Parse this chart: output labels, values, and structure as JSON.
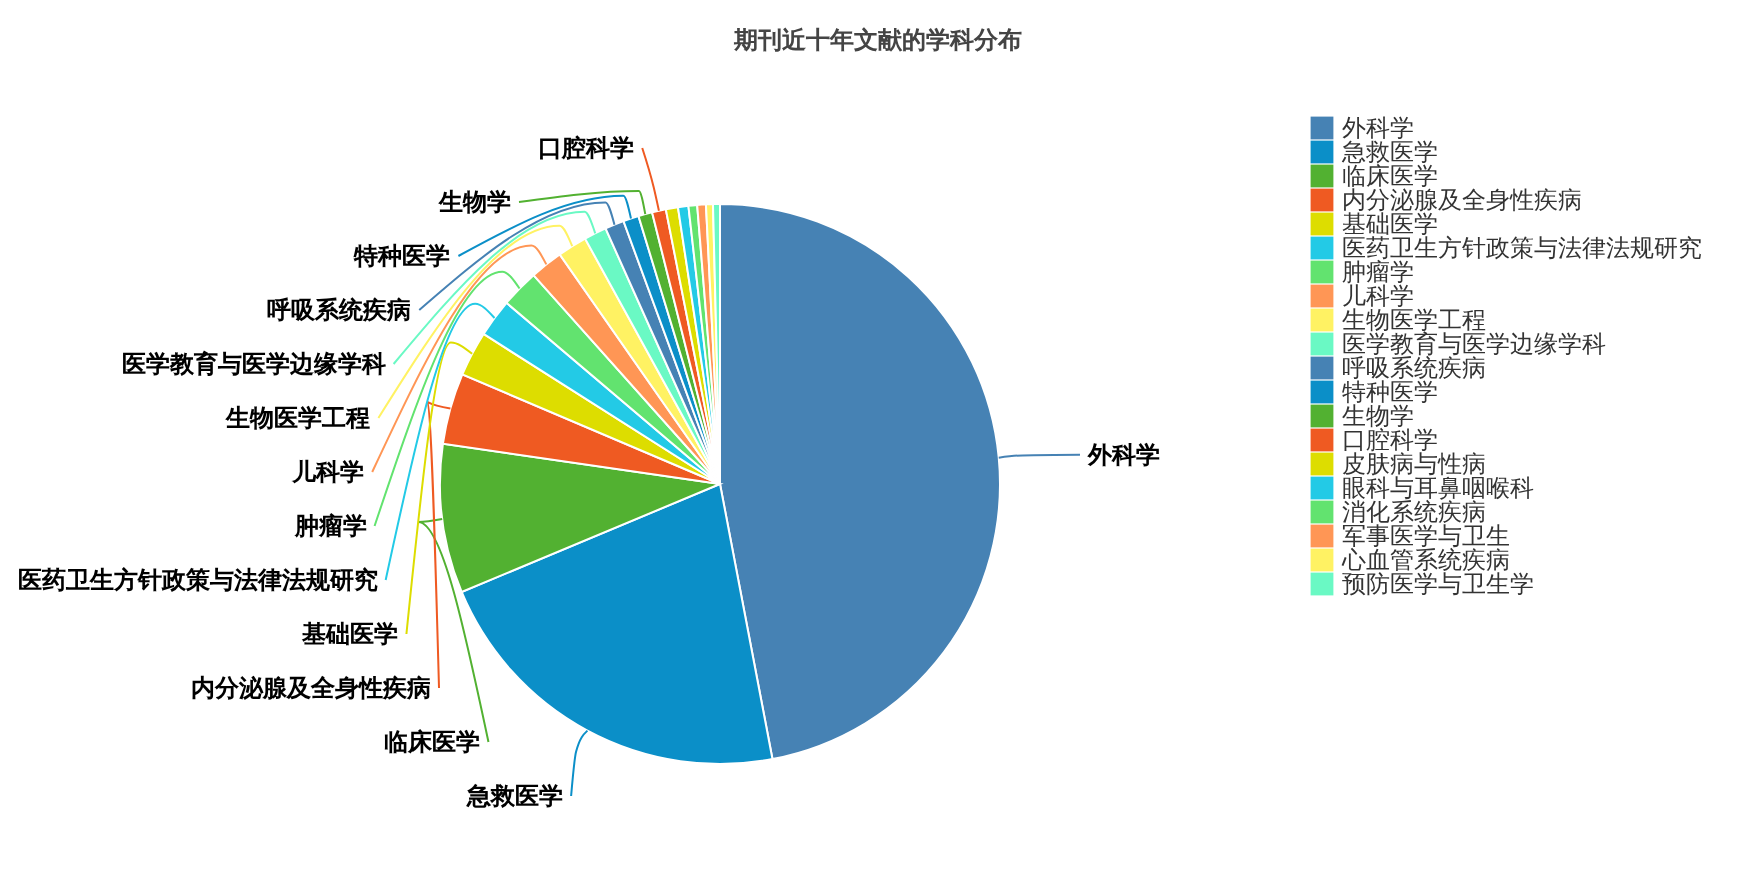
{
  "chart_data": {
    "type": "pie",
    "title": "期刊近十年文献的学科分布",
    "categories": [
      "外科学",
      "急救医学",
      "临床医学",
      "内分泌腺及全身性疾病",
      "基础医学",
      "医药卫生方针政策与法律法规研究",
      "肿瘤学",
      "儿科学",
      "生物医学工程",
      "医学教育与医学边缘学科",
      "呼吸系统疾病",
      "特种医学",
      "生物学",
      "口腔科学",
      "皮肤病与性病",
      "眼科与耳鼻咽喉科",
      "消化系统疾病",
      "军事医学与卫生",
      "心血管系统疾病",
      "预防医学与卫生学"
    ],
    "values": [
      47,
      21.7,
      8.6,
      4.1,
      2.6,
      2.2,
      2.2,
      1.9,
      1.7,
      1.3,
      1.1,
      0.9,
      0.8,
      0.8,
      0.7,
      0.6,
      0.5,
      0.5,
      0.4,
      0.4
    ],
    "colors": [
      "#4682b4",
      "#0b8fc8",
      "#52b131",
      "#ef5a22",
      "#dddd00",
      "#23cae6",
      "#62e36f",
      "#ff9655",
      "#fff263",
      "#6af9c4",
      "#4682b4",
      "#0b8fc8",
      "#52b131",
      "#ef5a22",
      "#dddd00",
      "#23cae6",
      "#62e36f",
      "#ff9655",
      "#fff263",
      "#6af9c4"
    ],
    "legend": "right"
  }
}
